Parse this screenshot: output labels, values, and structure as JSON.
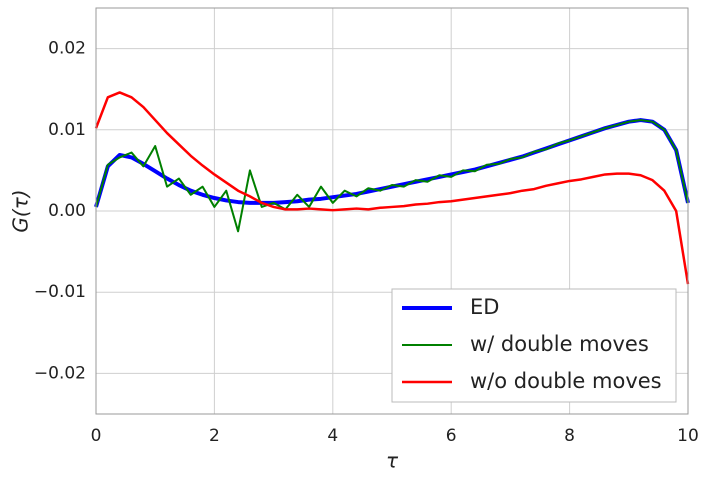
{
  "chart_data": {
    "type": "line",
    "xlabel": "τ",
    "ylabel": "G(τ)",
    "x": [
      0,
      0.2,
      0.4,
      0.6,
      0.8,
      1.0,
      1.2,
      1.4,
      1.6,
      1.8,
      2.0,
      2.2,
      2.4,
      2.6,
      2.8,
      3.0,
      3.2,
      3.4,
      3.6,
      3.8,
      4.0,
      4.2,
      4.4,
      4.6,
      4.8,
      5.0,
      5.2,
      5.4,
      5.6,
      5.8,
      6.0,
      6.2,
      6.4,
      6.6,
      6.8,
      7.0,
      7.2,
      7.4,
      7.6,
      7.8,
      8.0,
      8.2,
      8.4,
      8.6,
      8.8,
      9.0,
      9.2,
      9.4,
      9.6,
      9.8,
      10.0
    ],
    "series": [
      {
        "name": "ED",
        "color": "#0000ff",
        "width": 4,
        "values": [
          0.0005,
          0.0055,
          0.0069,
          0.0066,
          0.0058,
          0.0049,
          0.004,
          0.0032,
          0.0025,
          0.002,
          0.0016,
          0.0013,
          0.0011,
          0.001,
          0.001,
          0.001,
          0.0011,
          0.0012,
          0.0014,
          0.0015,
          0.0017,
          0.0019,
          0.0021,
          0.0024,
          0.0027,
          0.003,
          0.0033,
          0.0036,
          0.0039,
          0.0042,
          0.0045,
          0.0048,
          0.0051,
          0.0055,
          0.0059,
          0.0063,
          0.0067,
          0.0072,
          0.0077,
          0.0082,
          0.0087,
          0.0092,
          0.0097,
          0.0102,
          0.0106,
          0.011,
          0.0112,
          0.011,
          0.01,
          0.0075,
          0.001
        ]
      },
      {
        "name": "w/ double moves",
        "color": "#008000",
        "width": 2,
        "values": [
          0.0005,
          0.0057,
          0.0066,
          0.0072,
          0.0055,
          0.008,
          0.003,
          0.004,
          0.002,
          0.003,
          0.0005,
          0.0025,
          -0.0025,
          0.005,
          0.0005,
          0.001,
          0.0002,
          0.002,
          0.0005,
          0.003,
          0.001,
          0.0025,
          0.0018,
          0.0028,
          0.0025,
          0.0032,
          0.003,
          0.0038,
          0.0036,
          0.0044,
          0.0042,
          0.005,
          0.0049,
          0.0057,
          0.0058,
          0.0064,
          0.0066,
          0.0073,
          0.0076,
          0.0083,
          0.0087,
          0.0092,
          0.0097,
          0.0102,
          0.0106,
          0.011,
          0.0112,
          0.011,
          0.01,
          0.0075,
          0.001
        ]
      },
      {
        "name": "w/o double moves",
        "color": "#ff0000",
        "width": 2.5,
        "values": [
          0.0102,
          0.014,
          0.0146,
          0.014,
          0.0128,
          0.0112,
          0.0096,
          0.0082,
          0.0068,
          0.0056,
          0.0045,
          0.0035,
          0.0025,
          0.0018,
          0.001,
          0.0005,
          0.0002,
          0.0002,
          0.0003,
          0.0002,
          0.0001,
          0.0002,
          0.0003,
          0.0002,
          0.0004,
          0.0005,
          0.0006,
          0.0008,
          0.0009,
          0.0011,
          0.0012,
          0.0014,
          0.0016,
          0.0018,
          0.002,
          0.0022,
          0.0025,
          0.0027,
          0.0031,
          0.0034,
          0.0037,
          0.0039,
          0.0042,
          0.0045,
          0.0046,
          0.0046,
          0.0044,
          0.0038,
          0.0025,
          0.0,
          -0.009
        ]
      }
    ],
    "xlim": [
      0,
      10
    ],
    "xticks": [
      0,
      2,
      4,
      6,
      8,
      10
    ],
    "ylim": [
      -0.025,
      0.025
    ],
    "yticks": [
      {
        "value": -0.02,
        "label": "−0.02"
      },
      {
        "value": -0.01,
        "label": "−0.01"
      },
      {
        "value": 0,
        "label": "0.00"
      },
      0.01,
      0.02
    ],
    "grid": true,
    "legend": "lower right"
  }
}
